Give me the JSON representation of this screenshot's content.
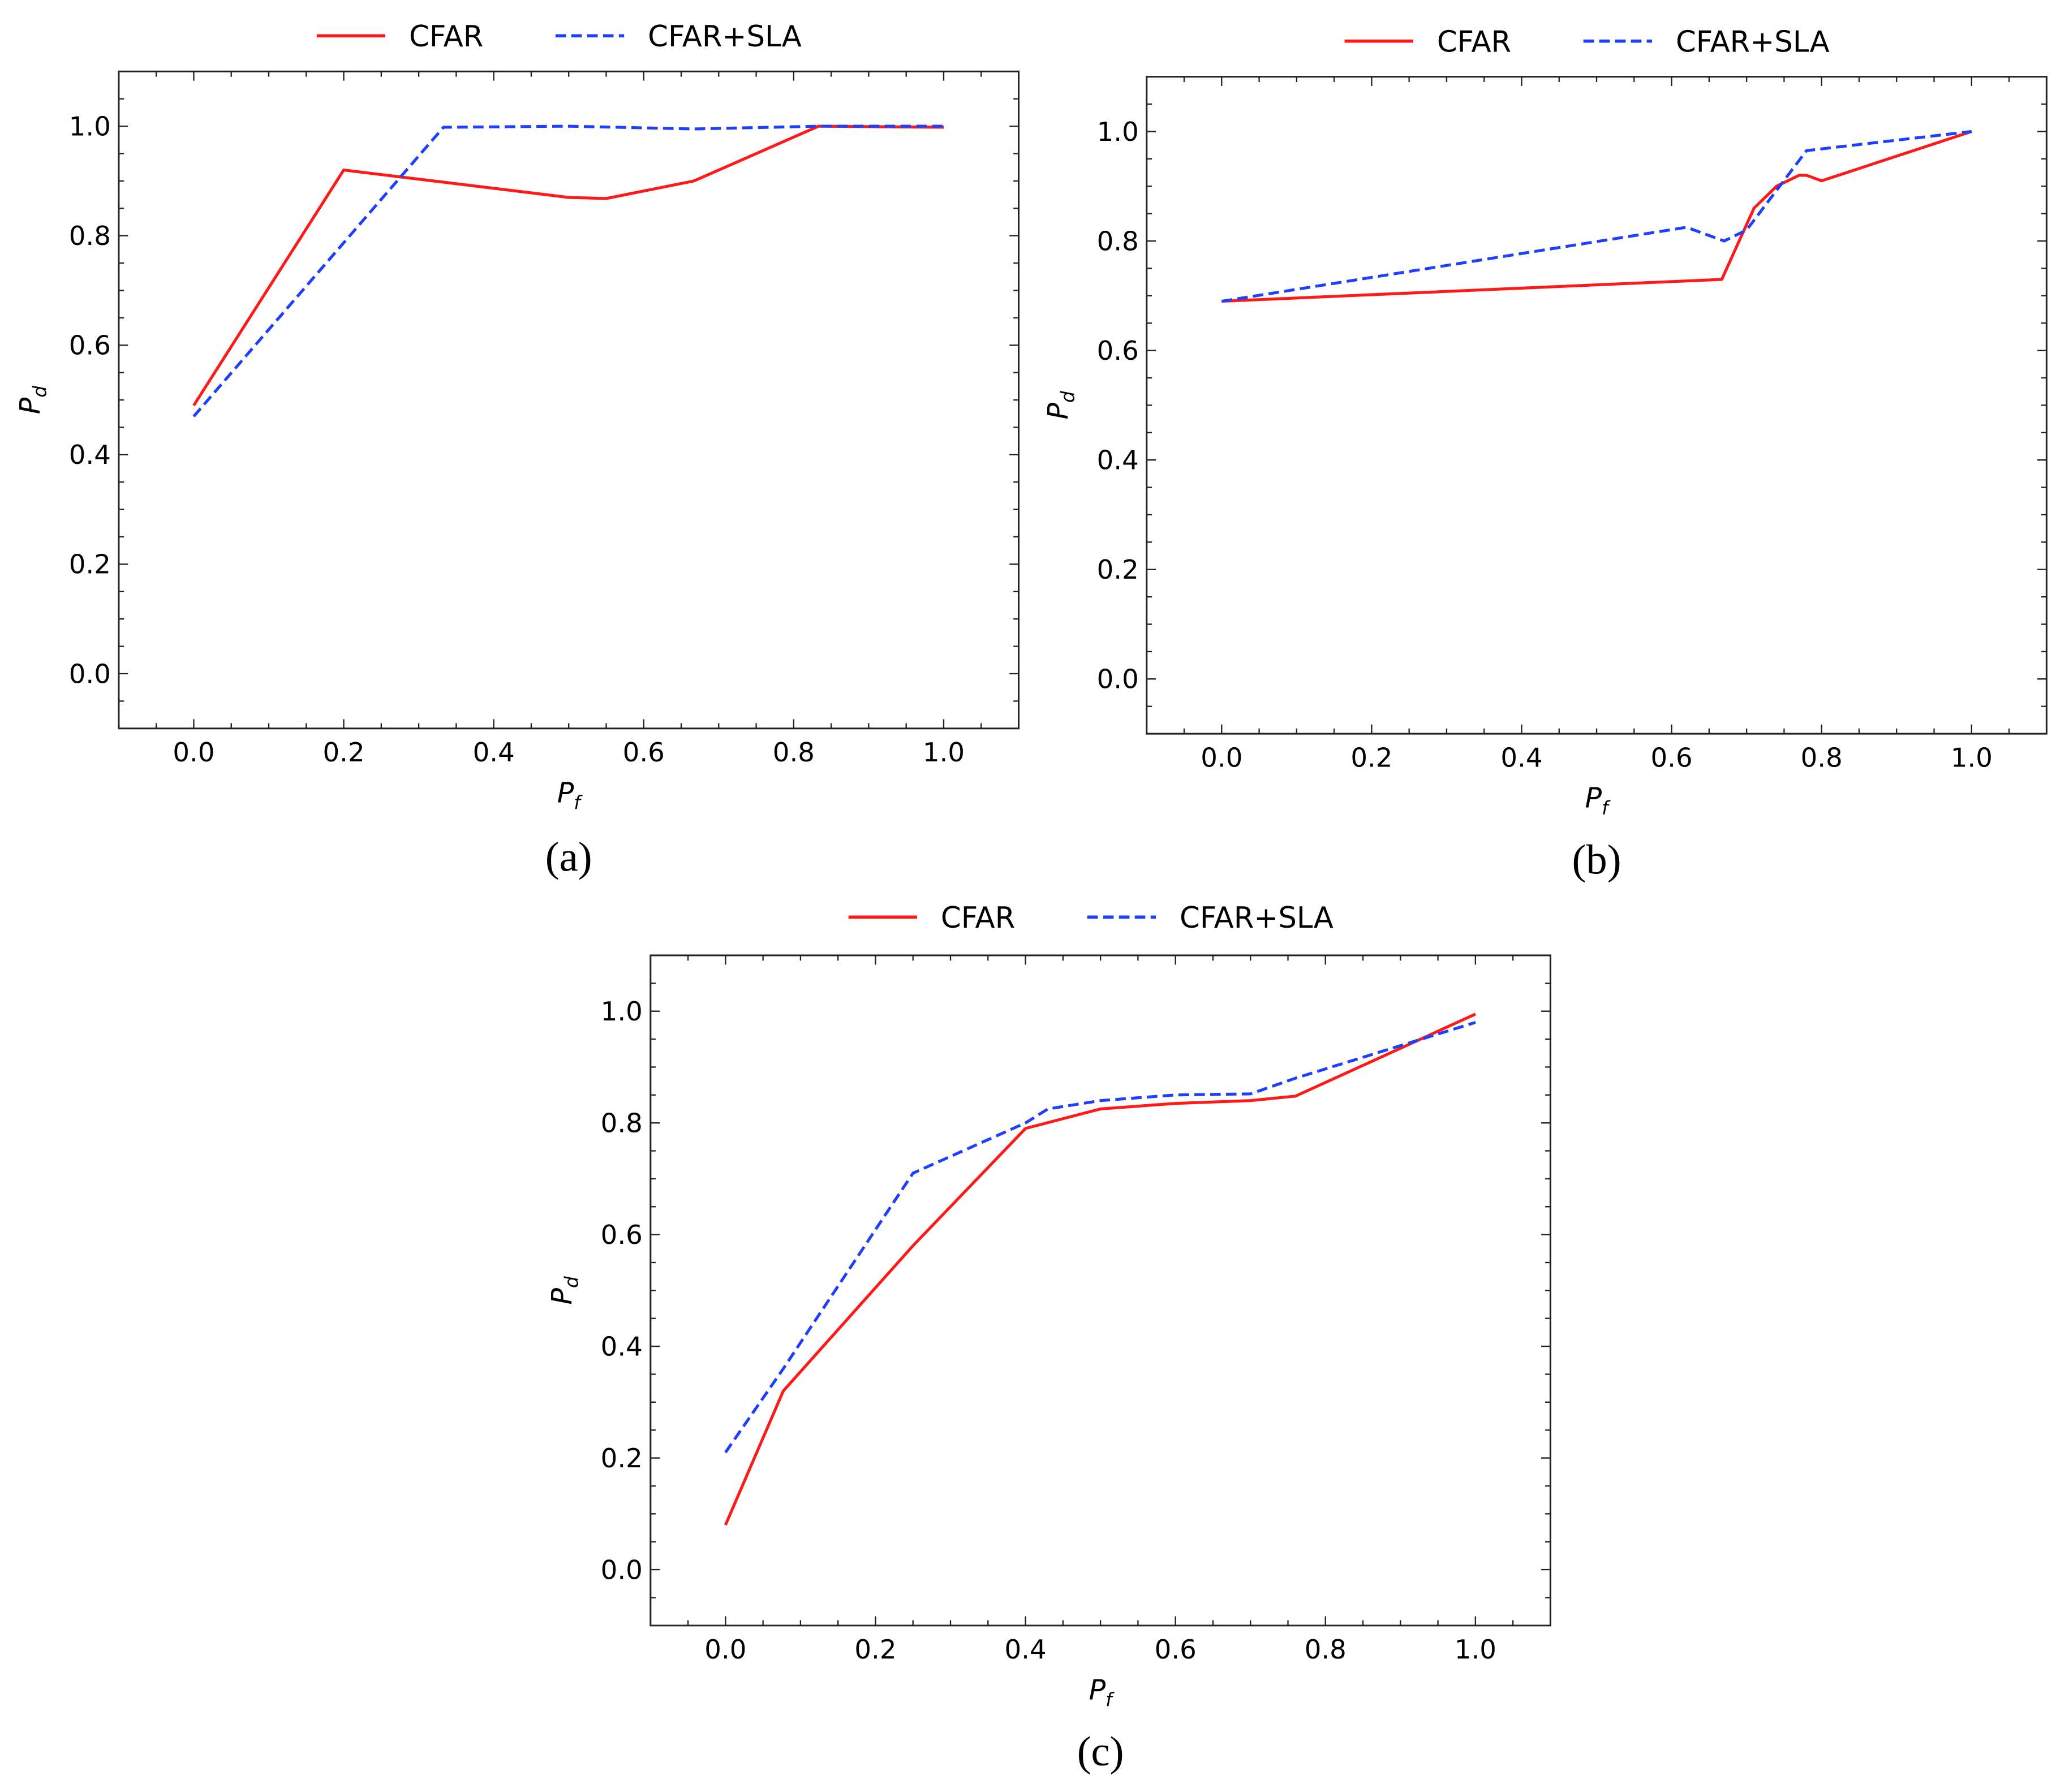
{
  "colors": {
    "cfar": "#ff1a1a",
    "sla": "#1f3fff"
  },
  "chart_data": [
    {
      "type": "line",
      "caption": "(a)",
      "xlabel": "P_f",
      "ylabel": "P_d",
      "xlim": [
        -0.1,
        1.1
      ],
      "ylim": [
        -0.1,
        1.1
      ],
      "xticks": [
        "0.0",
        "0.2",
        "0.4",
        "0.6",
        "0.8",
        "1.0"
      ],
      "yticks": [
        "0.0",
        "0.2",
        "0.4",
        "0.6",
        "0.8",
        "1.0"
      ],
      "legend": "top-outside",
      "series": [
        {
          "name": "CFAR",
          "style": "solid",
          "x": [
            0,
            0.2,
            0.5,
            0.55,
            0.667,
            0.833,
            1.0
          ],
          "y": [
            0.49,
            0.92,
            0.87,
            0.868,
            0.9,
            1.0,
            0.998
          ]
        },
        {
          "name": "CFAR+SLA",
          "style": "dashed",
          "x": [
            0,
            0.333,
            0.5,
            0.667,
            0.833,
            1.0
          ],
          "y": [
            0.47,
            0.998,
            1.0,
            0.995,
            1.0,
            1.0
          ]
        }
      ]
    },
    {
      "type": "line",
      "caption": "(b)",
      "xlabel": "P_f",
      "ylabel": "P_d",
      "xlim": [
        -0.1,
        1.1
      ],
      "ylim": [
        -0.1,
        1.1
      ],
      "xticks": [
        "0.0",
        "0.2",
        "0.4",
        "0.6",
        "0.8",
        "1.0"
      ],
      "yticks": [
        "0.0",
        "0.2",
        "0.4",
        "0.6",
        "0.8",
        "1.0"
      ],
      "legend": "top-outside",
      "series": [
        {
          "name": "CFAR",
          "style": "solid",
          "x": [
            0,
            0.667,
            0.69,
            0.71,
            0.74,
            0.77,
            0.78,
            0.8,
            1.0
          ],
          "y": [
            0.69,
            0.73,
            0.8,
            0.86,
            0.9,
            0.92,
            0.92,
            0.91,
            1.0
          ]
        },
        {
          "name": "CFAR+SLA",
          "style": "dashed",
          "x": [
            0,
            0.62,
            0.67,
            0.7,
            0.78,
            1.0
          ],
          "y": [
            0.69,
            0.825,
            0.8,
            0.82,
            0.965,
            1.0
          ]
        }
      ]
    },
    {
      "type": "line",
      "caption": "(c)",
      "xlabel": "P_f",
      "ylabel": "P_d",
      "xlim": [
        -0.1,
        1.1
      ],
      "ylim": [
        -0.1,
        1.1
      ],
      "xticks": [
        "0.0",
        "0.2",
        "0.4",
        "0.6",
        "0.8",
        "1.0"
      ],
      "yticks": [
        "0.0",
        "0.2",
        "0.4",
        "0.6",
        "0.8",
        "1.0"
      ],
      "legend": "top-outside",
      "series": [
        {
          "name": "CFAR",
          "style": "solid",
          "x": [
            0,
            0.077,
            0.25,
            0.4,
            0.5,
            0.6,
            0.7,
            0.76,
            1.0
          ],
          "y": [
            0.08,
            0.32,
            0.58,
            0.79,
            0.825,
            0.835,
            0.84,
            0.848,
            0.995
          ]
        },
        {
          "name": "CFAR+SLA",
          "style": "dashed",
          "x": [
            0,
            0.077,
            0.25,
            0.4,
            0.43,
            0.5,
            0.6,
            0.7,
            0.76,
            1.0
          ],
          "y": [
            0.21,
            0.36,
            0.71,
            0.8,
            0.825,
            0.84,
            0.85,
            0.852,
            0.88,
            0.98
          ]
        }
      ]
    }
  ]
}
